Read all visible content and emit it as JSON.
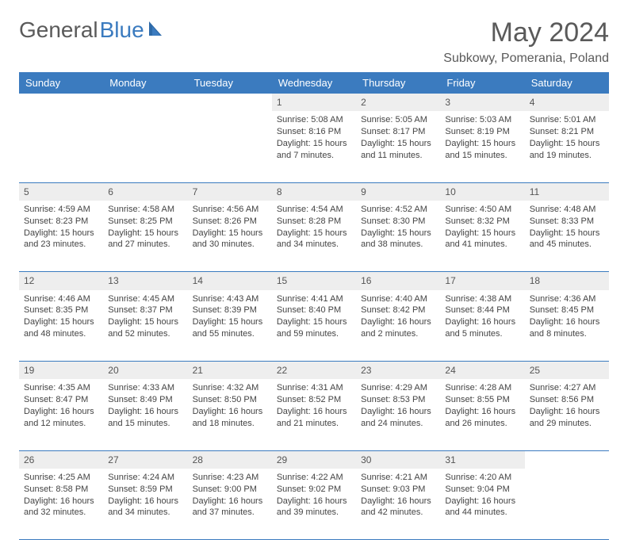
{
  "brand": {
    "part1": "General",
    "part2": "Blue"
  },
  "title": "May 2024",
  "location": "Subkowy, Pomerania, Poland",
  "colors": {
    "header_bg": "#3b7bbf",
    "header_text": "#ffffff",
    "daynum_bg": "#eeeeee",
    "text": "#444444",
    "rule": "#3b7bbf",
    "page_bg": "#ffffff",
    "brand_gray": "#5a5a5a",
    "brand_blue": "#3b7bbf"
  },
  "typography": {
    "title_fontsize": 34,
    "location_fontsize": 16,
    "dayheader_fontsize": 13,
    "cell_fontsize": 11
  },
  "day_headers": [
    "Sunday",
    "Monday",
    "Tuesday",
    "Wednesday",
    "Thursday",
    "Friday",
    "Saturday"
  ],
  "weeks": [
    {
      "nums": [
        "",
        "",
        "",
        "1",
        "2",
        "3",
        "4"
      ],
      "cells": [
        {
          "empty": true
        },
        {
          "empty": true
        },
        {
          "empty": true
        },
        {
          "sunrise": "Sunrise: 5:08 AM",
          "sunset": "Sunset: 8:16 PM",
          "day1": "Daylight: 15 hours",
          "day2": "and 7 minutes."
        },
        {
          "sunrise": "Sunrise: 5:05 AM",
          "sunset": "Sunset: 8:17 PM",
          "day1": "Daylight: 15 hours",
          "day2": "and 11 minutes."
        },
        {
          "sunrise": "Sunrise: 5:03 AM",
          "sunset": "Sunset: 8:19 PM",
          "day1": "Daylight: 15 hours",
          "day2": "and 15 minutes."
        },
        {
          "sunrise": "Sunrise: 5:01 AM",
          "sunset": "Sunset: 8:21 PM",
          "day1": "Daylight: 15 hours",
          "day2": "and 19 minutes."
        }
      ]
    },
    {
      "nums": [
        "5",
        "6",
        "7",
        "8",
        "9",
        "10",
        "11"
      ],
      "cells": [
        {
          "sunrise": "Sunrise: 4:59 AM",
          "sunset": "Sunset: 8:23 PM",
          "day1": "Daylight: 15 hours",
          "day2": "and 23 minutes."
        },
        {
          "sunrise": "Sunrise: 4:58 AM",
          "sunset": "Sunset: 8:25 PM",
          "day1": "Daylight: 15 hours",
          "day2": "and 27 minutes."
        },
        {
          "sunrise": "Sunrise: 4:56 AM",
          "sunset": "Sunset: 8:26 PM",
          "day1": "Daylight: 15 hours",
          "day2": "and 30 minutes."
        },
        {
          "sunrise": "Sunrise: 4:54 AM",
          "sunset": "Sunset: 8:28 PM",
          "day1": "Daylight: 15 hours",
          "day2": "and 34 minutes."
        },
        {
          "sunrise": "Sunrise: 4:52 AM",
          "sunset": "Sunset: 8:30 PM",
          "day1": "Daylight: 15 hours",
          "day2": "and 38 minutes."
        },
        {
          "sunrise": "Sunrise: 4:50 AM",
          "sunset": "Sunset: 8:32 PM",
          "day1": "Daylight: 15 hours",
          "day2": "and 41 minutes."
        },
        {
          "sunrise": "Sunrise: 4:48 AM",
          "sunset": "Sunset: 8:33 PM",
          "day1": "Daylight: 15 hours",
          "day2": "and 45 minutes."
        }
      ]
    },
    {
      "nums": [
        "12",
        "13",
        "14",
        "15",
        "16",
        "17",
        "18"
      ],
      "cells": [
        {
          "sunrise": "Sunrise: 4:46 AM",
          "sunset": "Sunset: 8:35 PM",
          "day1": "Daylight: 15 hours",
          "day2": "and 48 minutes."
        },
        {
          "sunrise": "Sunrise: 4:45 AM",
          "sunset": "Sunset: 8:37 PM",
          "day1": "Daylight: 15 hours",
          "day2": "and 52 minutes."
        },
        {
          "sunrise": "Sunrise: 4:43 AM",
          "sunset": "Sunset: 8:39 PM",
          "day1": "Daylight: 15 hours",
          "day2": "and 55 minutes."
        },
        {
          "sunrise": "Sunrise: 4:41 AM",
          "sunset": "Sunset: 8:40 PM",
          "day1": "Daylight: 15 hours",
          "day2": "and 59 minutes."
        },
        {
          "sunrise": "Sunrise: 4:40 AM",
          "sunset": "Sunset: 8:42 PM",
          "day1": "Daylight: 16 hours",
          "day2": "and 2 minutes."
        },
        {
          "sunrise": "Sunrise: 4:38 AM",
          "sunset": "Sunset: 8:44 PM",
          "day1": "Daylight: 16 hours",
          "day2": "and 5 minutes."
        },
        {
          "sunrise": "Sunrise: 4:36 AM",
          "sunset": "Sunset: 8:45 PM",
          "day1": "Daylight: 16 hours",
          "day2": "and 8 minutes."
        }
      ]
    },
    {
      "nums": [
        "19",
        "20",
        "21",
        "22",
        "23",
        "24",
        "25"
      ],
      "cells": [
        {
          "sunrise": "Sunrise: 4:35 AM",
          "sunset": "Sunset: 8:47 PM",
          "day1": "Daylight: 16 hours",
          "day2": "and 12 minutes."
        },
        {
          "sunrise": "Sunrise: 4:33 AM",
          "sunset": "Sunset: 8:49 PM",
          "day1": "Daylight: 16 hours",
          "day2": "and 15 minutes."
        },
        {
          "sunrise": "Sunrise: 4:32 AM",
          "sunset": "Sunset: 8:50 PM",
          "day1": "Daylight: 16 hours",
          "day2": "and 18 minutes."
        },
        {
          "sunrise": "Sunrise: 4:31 AM",
          "sunset": "Sunset: 8:52 PM",
          "day1": "Daylight: 16 hours",
          "day2": "and 21 minutes."
        },
        {
          "sunrise": "Sunrise: 4:29 AM",
          "sunset": "Sunset: 8:53 PM",
          "day1": "Daylight: 16 hours",
          "day2": "and 24 minutes."
        },
        {
          "sunrise": "Sunrise: 4:28 AM",
          "sunset": "Sunset: 8:55 PM",
          "day1": "Daylight: 16 hours",
          "day2": "and 26 minutes."
        },
        {
          "sunrise": "Sunrise: 4:27 AM",
          "sunset": "Sunset: 8:56 PM",
          "day1": "Daylight: 16 hours",
          "day2": "and 29 minutes."
        }
      ]
    },
    {
      "nums": [
        "26",
        "27",
        "28",
        "29",
        "30",
        "31",
        ""
      ],
      "cells": [
        {
          "sunrise": "Sunrise: 4:25 AM",
          "sunset": "Sunset: 8:58 PM",
          "day1": "Daylight: 16 hours",
          "day2": "and 32 minutes."
        },
        {
          "sunrise": "Sunrise: 4:24 AM",
          "sunset": "Sunset: 8:59 PM",
          "day1": "Daylight: 16 hours",
          "day2": "and 34 minutes."
        },
        {
          "sunrise": "Sunrise: 4:23 AM",
          "sunset": "Sunset: 9:00 PM",
          "day1": "Daylight: 16 hours",
          "day2": "and 37 minutes."
        },
        {
          "sunrise": "Sunrise: 4:22 AM",
          "sunset": "Sunset: 9:02 PM",
          "day1": "Daylight: 16 hours",
          "day2": "and 39 minutes."
        },
        {
          "sunrise": "Sunrise: 4:21 AM",
          "sunset": "Sunset: 9:03 PM",
          "day1": "Daylight: 16 hours",
          "day2": "and 42 minutes."
        },
        {
          "sunrise": "Sunrise: 4:20 AM",
          "sunset": "Sunset: 9:04 PM",
          "day1": "Daylight: 16 hours",
          "day2": "and 44 minutes."
        },
        {
          "empty": true
        }
      ]
    }
  ]
}
